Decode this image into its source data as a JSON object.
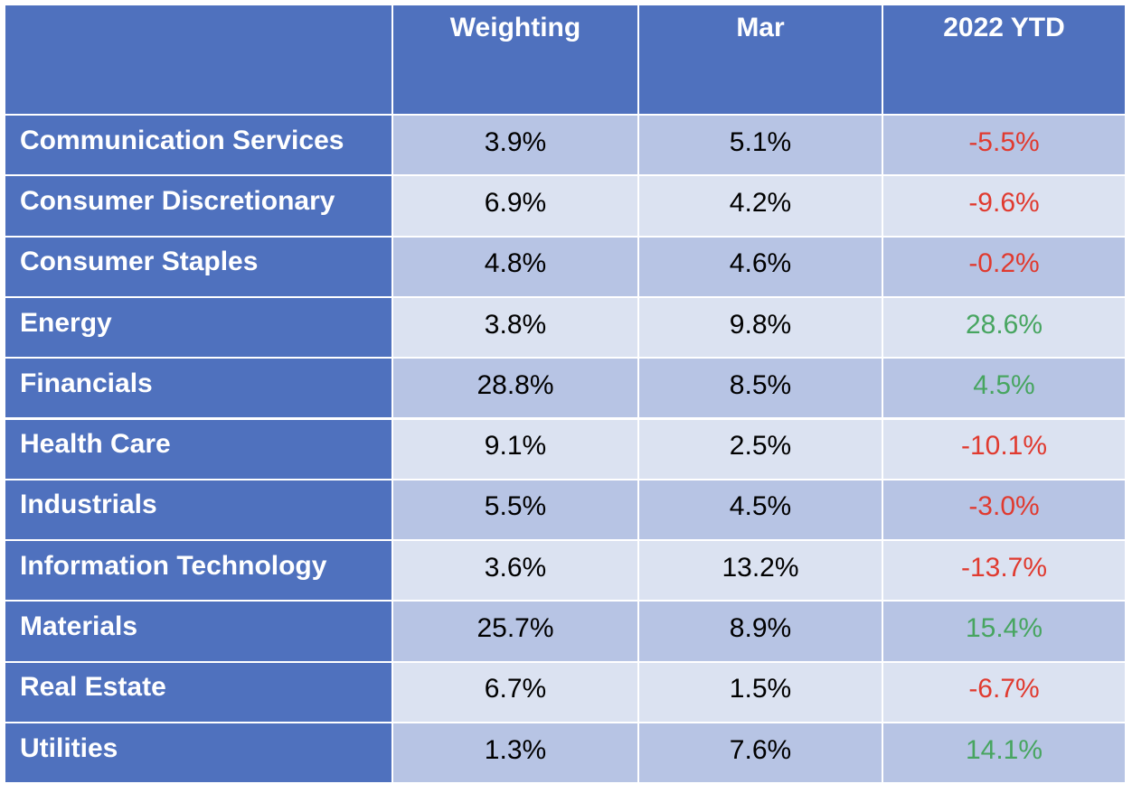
{
  "header": {
    "columns": [
      "Weighting",
      "Mar",
      "2022 YTD"
    ]
  },
  "table": {
    "rows": [
      {
        "label": "Communication Services",
        "values": [
          "3.9%",
          "5.1%",
          "-5.5%"
        ]
      },
      {
        "label": "Consumer Discretionary",
        "values": [
          "6.9%",
          "4.2%",
          "-9.6%"
        ]
      },
      {
        "label": "Consumer Staples",
        "values": [
          "4.8%",
          "4.6%",
          "-0.2%"
        ]
      },
      {
        "label": "Energy",
        "values": [
          "3.8%",
          "9.8%",
          "28.6%"
        ]
      },
      {
        "label": "Financials",
        "values": [
          "28.8%",
          "8.5%",
          "4.5%"
        ]
      },
      {
        "label": "Health Care",
        "values": [
          "9.1%",
          "2.5%",
          "-10.1%"
        ]
      },
      {
        "label": "Industrials",
        "values": [
          "5.5%",
          "4.5%",
          "-3.0%"
        ]
      },
      {
        "label": "Information Technology",
        "values": [
          "3.6%",
          "13.2%",
          "-13.7%"
        ]
      },
      {
        "label": "Materials",
        "values": [
          "25.7%",
          "8.9%",
          "15.4%"
        ]
      },
      {
        "label": "Real Estate",
        "values": [
          "6.7%",
          "1.5%",
          "-6.7%"
        ]
      },
      {
        "label": "Utilities",
        "values": [
          "1.3%",
          "7.6%",
          "14.1%"
        ]
      }
    ]
  },
  "colors": {
    "negative": "#e03a2f",
    "positive": "#47a560"
  }
}
